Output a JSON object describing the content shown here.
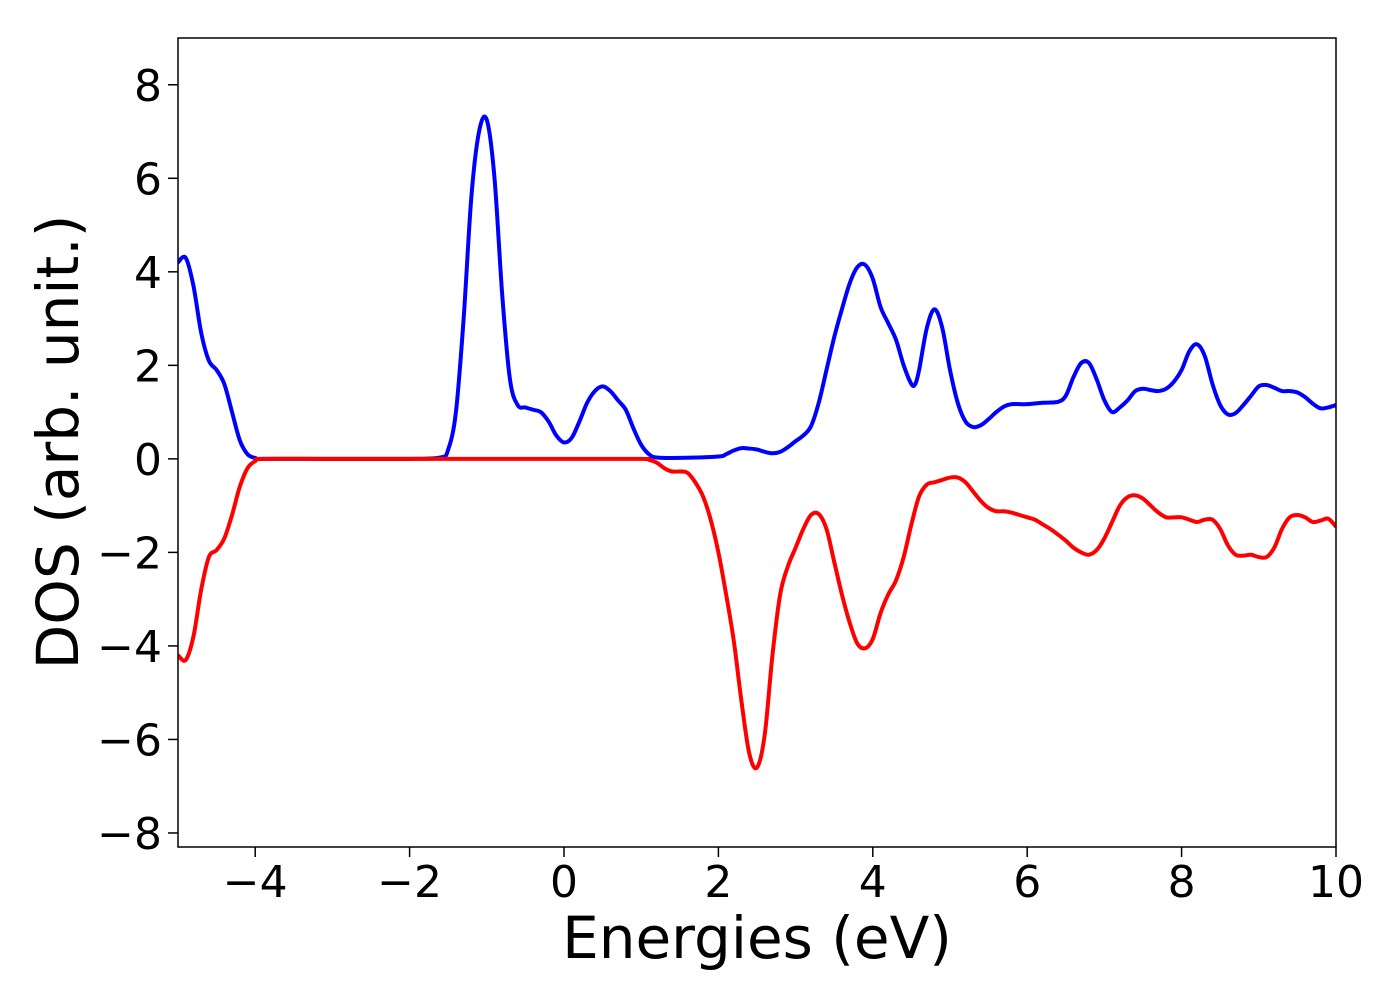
{
  "chart_data": {
    "type": "line",
    "title": "",
    "xlabel": "Energies (eV)",
    "ylabel": "DOS (arb. unit.)",
    "xlim": [
      -5,
      10
    ],
    "ylim": [
      -8.3,
      9.0
    ],
    "xticks": [
      -4,
      -2,
      0,
      2,
      4,
      6,
      8,
      10
    ],
    "yticks": [
      -8,
      -6,
      -4,
      -2,
      0,
      2,
      4,
      6,
      8
    ],
    "xtick_labels": [
      "−4",
      "−2",
      "0",
      "2",
      "4",
      "6",
      "8",
      "10"
    ],
    "ytick_labels": [
      "−8",
      "−6",
      "−4",
      "−2",
      "0",
      "2",
      "4",
      "6",
      "8"
    ],
    "grid": false,
    "legend": "none",
    "series": [
      {
        "color": "#0000ff",
        "points": [
          [
            -5.0,
            4.2
          ],
          [
            -4.9,
            4.3
          ],
          [
            -4.8,
            3.7
          ],
          [
            -4.7,
            2.7
          ],
          [
            -4.6,
            2.1
          ],
          [
            -4.5,
            1.9
          ],
          [
            -4.4,
            1.6
          ],
          [
            -4.3,
            1.0
          ],
          [
            -4.2,
            0.4
          ],
          [
            -4.1,
            0.1
          ],
          [
            -4.0,
            0.02
          ],
          [
            -3.9,
            0.0
          ],
          [
            -3.0,
            0.0
          ],
          [
            -2.0,
            0.0
          ],
          [
            -1.6,
            0.03
          ],
          [
            -1.5,
            0.2
          ],
          [
            -1.4,
            1.0
          ],
          [
            -1.3,
            3.0
          ],
          [
            -1.2,
            5.6
          ],
          [
            -1.1,
            7.0
          ],
          [
            -1.0,
            7.25
          ],
          [
            -0.9,
            6.0
          ],
          [
            -0.8,
            3.5
          ],
          [
            -0.7,
            1.7
          ],
          [
            -0.6,
            1.15
          ],
          [
            -0.5,
            1.1
          ],
          [
            -0.4,
            1.05
          ],
          [
            -0.3,
            1.0
          ],
          [
            -0.2,
            0.8
          ],
          [
            -0.1,
            0.5
          ],
          [
            0.0,
            0.35
          ],
          [
            0.1,
            0.45
          ],
          [
            0.2,
            0.8
          ],
          [
            0.3,
            1.2
          ],
          [
            0.4,
            1.45
          ],
          [
            0.5,
            1.55
          ],
          [
            0.6,
            1.45
          ],
          [
            0.7,
            1.25
          ],
          [
            0.8,
            1.05
          ],
          [
            0.9,
            0.65
          ],
          [
            1.0,
            0.3
          ],
          [
            1.1,
            0.1
          ],
          [
            1.2,
            0.03
          ],
          [
            1.5,
            0.02
          ],
          [
            2.0,
            0.05
          ],
          [
            2.1,
            0.1
          ],
          [
            2.2,
            0.18
          ],
          [
            2.3,
            0.23
          ],
          [
            2.4,
            0.22
          ],
          [
            2.5,
            0.2
          ],
          [
            2.6,
            0.15
          ],
          [
            2.7,
            0.12
          ],
          [
            2.8,
            0.15
          ],
          [
            2.9,
            0.25
          ],
          [
            3.0,
            0.38
          ],
          [
            3.1,
            0.5
          ],
          [
            3.2,
            0.7
          ],
          [
            3.3,
            1.2
          ],
          [
            3.4,
            1.9
          ],
          [
            3.5,
            2.6
          ],
          [
            3.6,
            3.2
          ],
          [
            3.7,
            3.75
          ],
          [
            3.8,
            4.1
          ],
          [
            3.9,
            4.15
          ],
          [
            4.0,
            3.85
          ],
          [
            4.1,
            3.25
          ],
          [
            4.2,
            2.9
          ],
          [
            4.3,
            2.55
          ],
          [
            4.4,
            2.0
          ],
          [
            4.5,
            1.6
          ],
          [
            4.55,
            1.6
          ],
          [
            4.6,
            1.9
          ],
          [
            4.7,
            2.8
          ],
          [
            4.8,
            3.2
          ],
          [
            4.9,
            2.8
          ],
          [
            5.0,
            1.9
          ],
          [
            5.1,
            1.2
          ],
          [
            5.2,
            0.8
          ],
          [
            5.3,
            0.68
          ],
          [
            5.4,
            0.72
          ],
          [
            5.5,
            0.85
          ],
          [
            5.6,
            1.0
          ],
          [
            5.7,
            1.12
          ],
          [
            5.8,
            1.17
          ],
          [
            6.0,
            1.17
          ],
          [
            6.2,
            1.2
          ],
          [
            6.4,
            1.22
          ],
          [
            6.5,
            1.35
          ],
          [
            6.6,
            1.75
          ],
          [
            6.7,
            2.05
          ],
          [
            6.8,
            2.05
          ],
          [
            6.9,
            1.7
          ],
          [
            7.0,
            1.25
          ],
          [
            7.1,
            1.0
          ],
          [
            7.2,
            1.1
          ],
          [
            7.3,
            1.25
          ],
          [
            7.4,
            1.45
          ],
          [
            7.5,
            1.5
          ],
          [
            7.6,
            1.47
          ],
          [
            7.7,
            1.45
          ],
          [
            7.8,
            1.5
          ],
          [
            7.9,
            1.65
          ],
          [
            8.0,
            1.9
          ],
          [
            8.1,
            2.3
          ],
          [
            8.2,
            2.45
          ],
          [
            8.3,
            2.2
          ],
          [
            8.4,
            1.6
          ],
          [
            8.5,
            1.15
          ],
          [
            8.6,
            0.95
          ],
          [
            8.7,
            0.98
          ],
          [
            8.8,
            1.15
          ],
          [
            8.9,
            1.35
          ],
          [
            9.0,
            1.55
          ],
          [
            9.1,
            1.58
          ],
          [
            9.2,
            1.52
          ],
          [
            9.3,
            1.45
          ],
          [
            9.4,
            1.45
          ],
          [
            9.5,
            1.42
          ],
          [
            9.6,
            1.32
          ],
          [
            9.7,
            1.18
          ],
          [
            9.8,
            1.08
          ],
          [
            9.9,
            1.1
          ],
          [
            10.0,
            1.15
          ]
        ]
      },
      {
        "color": "#ff0000",
        "points": [
          [
            -5.0,
            -4.2
          ],
          [
            -4.9,
            -4.3
          ],
          [
            -4.8,
            -3.8
          ],
          [
            -4.7,
            -2.8
          ],
          [
            -4.6,
            -2.1
          ],
          [
            -4.5,
            -1.95
          ],
          [
            -4.4,
            -1.7
          ],
          [
            -4.3,
            -1.2
          ],
          [
            -4.2,
            -0.6
          ],
          [
            -4.1,
            -0.2
          ],
          [
            -4.0,
            -0.05
          ],
          [
            -3.9,
            0.0
          ],
          [
            -3.0,
            0.0
          ],
          [
            -2.0,
            0.0
          ],
          [
            -1.0,
            0.0
          ],
          [
            0.0,
            0.0
          ],
          [
            1.0,
            0.0
          ],
          [
            1.1,
            -0.02
          ],
          [
            1.2,
            -0.08
          ],
          [
            1.3,
            -0.2
          ],
          [
            1.4,
            -0.27
          ],
          [
            1.5,
            -0.27
          ],
          [
            1.6,
            -0.3
          ],
          [
            1.7,
            -0.5
          ],
          [
            1.8,
            -0.8
          ],
          [
            1.9,
            -1.3
          ],
          [
            2.0,
            -2.0
          ],
          [
            2.1,
            -2.9
          ],
          [
            2.2,
            -3.9
          ],
          [
            2.3,
            -5.2
          ],
          [
            2.4,
            -6.3
          ],
          [
            2.5,
            -6.6
          ],
          [
            2.6,
            -5.9
          ],
          [
            2.7,
            -4.2
          ],
          [
            2.8,
            -2.9
          ],
          [
            2.9,
            -2.3
          ],
          [
            3.0,
            -1.9
          ],
          [
            3.1,
            -1.5
          ],
          [
            3.2,
            -1.2
          ],
          [
            3.3,
            -1.18
          ],
          [
            3.4,
            -1.5
          ],
          [
            3.5,
            -2.2
          ],
          [
            3.6,
            -2.9
          ],
          [
            3.7,
            -3.5
          ],
          [
            3.8,
            -3.95
          ],
          [
            3.9,
            -4.05
          ],
          [
            4.0,
            -3.85
          ],
          [
            4.1,
            -3.3
          ],
          [
            4.2,
            -2.9
          ],
          [
            4.3,
            -2.6
          ],
          [
            4.4,
            -2.1
          ],
          [
            4.5,
            -1.4
          ],
          [
            4.6,
            -0.8
          ],
          [
            4.7,
            -0.55
          ],
          [
            4.8,
            -0.5
          ],
          [
            4.9,
            -0.45
          ],
          [
            5.0,
            -0.4
          ],
          [
            5.1,
            -0.4
          ],
          [
            5.2,
            -0.5
          ],
          [
            5.3,
            -0.7
          ],
          [
            5.4,
            -0.9
          ],
          [
            5.5,
            -1.05
          ],
          [
            5.6,
            -1.12
          ],
          [
            5.7,
            -1.12
          ],
          [
            5.8,
            -1.15
          ],
          [
            5.9,
            -1.2
          ],
          [
            6.0,
            -1.25
          ],
          [
            6.1,
            -1.3
          ],
          [
            6.2,
            -1.4
          ],
          [
            6.3,
            -1.5
          ],
          [
            6.4,
            -1.62
          ],
          [
            6.5,
            -1.75
          ],
          [
            6.6,
            -1.9
          ],
          [
            6.7,
            -2.0
          ],
          [
            6.8,
            -2.05
          ],
          [
            6.9,
            -1.95
          ],
          [
            7.0,
            -1.7
          ],
          [
            7.1,
            -1.35
          ],
          [
            7.2,
            -1.0
          ],
          [
            7.3,
            -0.82
          ],
          [
            7.4,
            -0.78
          ],
          [
            7.5,
            -0.85
          ],
          [
            7.6,
            -1.0
          ],
          [
            7.7,
            -1.15
          ],
          [
            7.8,
            -1.25
          ],
          [
            7.9,
            -1.25
          ],
          [
            8.0,
            -1.25
          ],
          [
            8.1,
            -1.3
          ],
          [
            8.2,
            -1.35
          ],
          [
            8.3,
            -1.3
          ],
          [
            8.4,
            -1.3
          ],
          [
            8.5,
            -1.5
          ],
          [
            8.6,
            -1.85
          ],
          [
            8.7,
            -2.05
          ],
          [
            8.8,
            -2.07
          ],
          [
            8.9,
            -2.05
          ],
          [
            9.0,
            -2.1
          ],
          [
            9.1,
            -2.1
          ],
          [
            9.2,
            -1.9
          ],
          [
            9.3,
            -1.5
          ],
          [
            9.4,
            -1.25
          ],
          [
            9.5,
            -1.2
          ],
          [
            9.6,
            -1.25
          ],
          [
            9.7,
            -1.35
          ],
          [
            9.8,
            -1.32
          ],
          [
            9.9,
            -1.28
          ],
          [
            10.0,
            -1.45
          ]
        ]
      }
    ]
  }
}
